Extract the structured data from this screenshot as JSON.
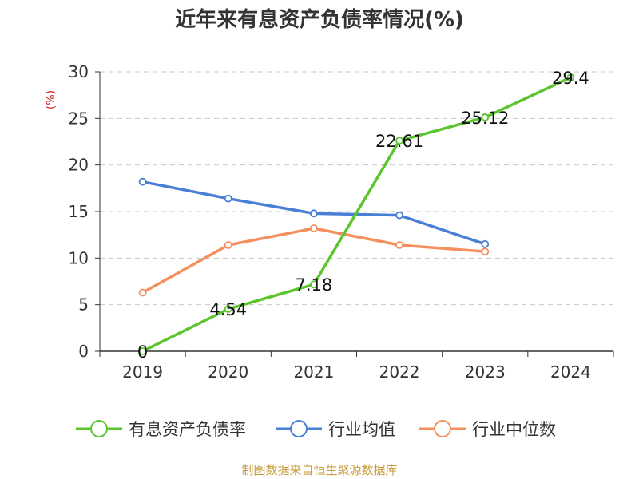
{
  "chart_data": {
    "type": "line",
    "title": "近年来有息资产负债率情况(%)",
    "ylabel": "(%)",
    "xlabel": "",
    "ylim": [
      0,
      30
    ],
    "yticks": [
      0,
      5,
      10,
      15,
      20,
      25,
      30
    ],
    "categories": [
      "2019",
      "2020",
      "2021",
      "2022",
      "2023",
      "2024"
    ],
    "grid": true,
    "legend_position": "bottom",
    "series": [
      {
        "name": "有息资产负债率",
        "color": "#5cc52e",
        "values": [
          0,
          4.54,
          7.18,
          22.61,
          25.12,
          29.4
        ],
        "labels": [
          "0",
          "4.54",
          "7.18",
          "22.61",
          "25.12",
          "29.4"
        ],
        "show_labels": true
      },
      {
        "name": "行业均值",
        "color": "#4a7fd6",
        "values": [
          18.2,
          16.4,
          14.8,
          14.6,
          11.5,
          null
        ],
        "show_labels": false
      },
      {
        "name": "行业中位数",
        "color": "#f5905e",
        "values": [
          6.3,
          11.4,
          13.2,
          11.4,
          10.7,
          null
        ],
        "show_labels": false
      }
    ]
  },
  "source": "制图数据来自恒生聚源数据库"
}
